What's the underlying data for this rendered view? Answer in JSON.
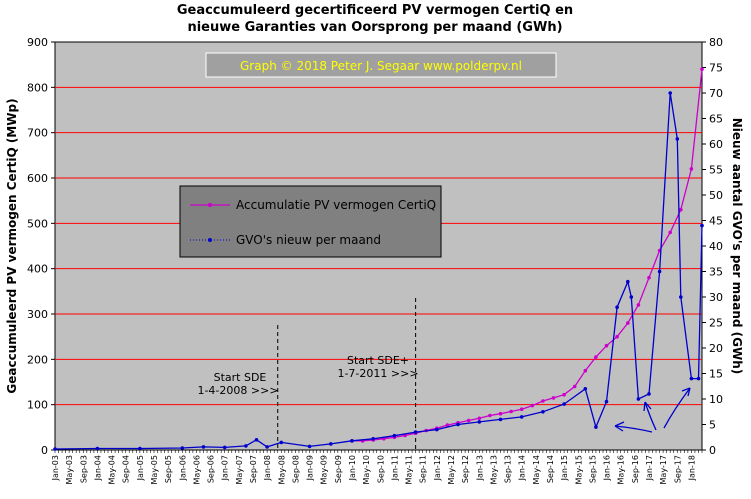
{
  "chart_data": {
    "type": "line",
    "title_line1": "Geaccumuleerd gecertificeerd PV vermogen CertiQ en",
    "title_line2": "nieuwe Garanties van Oorsprong per maand (GWh)",
    "ylabel_left": "Geaccumuleerd PV vermogen CertiQ (MWp)",
    "ylabel_right": "Nieuw aantal GVO's per maand (GWh)",
    "credit": "Graph  © 2018  Peter J. Segaar  www.polderpv.nl",
    "ylim_left": [
      0,
      900
    ],
    "yticks_left": [
      "0",
      "100",
      "200",
      "300",
      "400",
      "500",
      "600",
      "700",
      "800",
      "900"
    ],
    "ylim_right": [
      0,
      80
    ],
    "yticks_right": [
      "0",
      "5",
      "10",
      "15",
      "20",
      "25",
      "30",
      "35",
      "40",
      "45",
      "50",
      "55",
      "60",
      "65",
      "70",
      "75",
      "80"
    ],
    "x_start": "Jan-03",
    "x_end": "Apr-18",
    "x_tick_labels": [
      "Jan-03",
      "May-03",
      "Sep-03",
      "Jan-04",
      "May-04",
      "Sep-04",
      "Jan-05",
      "May-05",
      "Sep-05",
      "Jan-06",
      "May-06",
      "Sep-06",
      "Jan-07",
      "May-07",
      "Sep-07",
      "Jan-08",
      "May-08",
      "Sep-08",
      "Jan-09",
      "May-09",
      "Sep-09",
      "Jan-10",
      "May-10",
      "Sep-10",
      "Jan-11",
      "May-11",
      "Sep-11",
      "Jan-12",
      "May-12",
      "Sep-12",
      "Jan-13",
      "May-13",
      "Sep-13",
      "Jan-14",
      "May-14",
      "Sep-14",
      "Jan-15",
      "May-15",
      "Sep-15",
      "Jan-16",
      "May-16",
      "Sep-16",
      "Jan-17",
      "May-17",
      "Sep-17",
      "Jan-18"
    ],
    "legend_placement": "center-left",
    "grid": "horizontal",
    "series": [
      {
        "name": "Accumulatie PV vermogen CertiQ",
        "axis": "left",
        "color": "#cc00cc",
        "x": [
          "Jan-10",
          "Apr-10",
          "Jul-10",
          "Oct-10",
          "Jan-11",
          "Apr-11",
          "Jul-11",
          "Oct-11",
          "Jan-12",
          "Apr-12",
          "Jul-12",
          "Oct-12",
          "Jan-13",
          "Apr-13",
          "Jul-13",
          "Oct-13",
          "Jan-14",
          "Apr-14",
          "Jul-14",
          "Oct-14",
          "Jan-15",
          "Apr-15",
          "Jul-15",
          "Oct-15",
          "Jan-16",
          "Apr-16",
          "Jul-16",
          "Oct-16",
          "Jan-17",
          "Apr-17",
          "Jul-17",
          "Oct-17",
          "Jan-18",
          "Apr-18"
        ],
        "y": [
          20,
          20,
          22,
          25,
          28,
          32,
          37,
          43,
          48,
          55,
          60,
          65,
          70,
          76,
          80,
          85,
          90,
          98,
          108,
          115,
          122,
          140,
          175,
          205,
          230,
          250,
          280,
          320,
          380,
          440,
          480,
          530,
          620,
          840
        ]
      },
      {
        "name": "GVO's nieuw per maand",
        "axis": "right",
        "color": "#0000cc",
        "x": [
          "Jan-03",
          "Jan-04",
          "Jan-05",
          "Jan-06",
          "Jul-06",
          "Jan-07",
          "Jul-07",
          "Oct-07",
          "Jan-08",
          "May-08",
          "Jan-09",
          "Jul-09",
          "Jan-10",
          "Jul-10",
          "Jan-11",
          "Jul-11",
          "Jan-12",
          "Jul-12",
          "Jan-13",
          "Jul-13",
          "Jan-14",
          "Jul-14",
          "Jan-15",
          "Jul-15",
          "Oct-15",
          "Jan-16",
          "Apr-16",
          "Jul-16",
          "Aug-16",
          "Oct-16",
          "Jan-17",
          "Apr-17",
          "Jul-17",
          "Sep-17",
          "Oct-17",
          "Jan-18",
          "Mar-18",
          "Apr-18"
        ],
        "y": [
          0.2,
          0.3,
          0.3,
          0.4,
          0.6,
          0.5,
          0.8,
          2,
          0.6,
          1.5,
          0.7,
          1.2,
          1.8,
          2.2,
          2.8,
          3.5,
          4,
          5,
          5.5,
          6,
          6.5,
          7.5,
          9,
          12,
          4.5,
          9.5,
          28,
          33,
          30,
          10,
          11,
          35,
          70,
          61,
          30,
          14,
          14,
          44
        ]
      }
    ],
    "legend_entries": [
      "Accumulatie PV vermogen CertiQ",
      "GVO's nieuw per maand"
    ],
    "annotations": {
      "sde_line1": "Start SDE",
      "sde_line2": "1-4-2008  >>>",
      "sdeplus_line1": "Start SDE+",
      "sdeplus_line2": "1-7-2011  >>>",
      "sde_date": "Apr-08",
      "sdeplus_date": "Jul-11"
    },
    "colors": {
      "plot_bg": "#c0c0c0",
      "gridline": "#ff0000",
      "legend_bg": "#808080",
      "credit_bg": "#a0a0a0",
      "arrow": "#0000cc"
    }
  }
}
